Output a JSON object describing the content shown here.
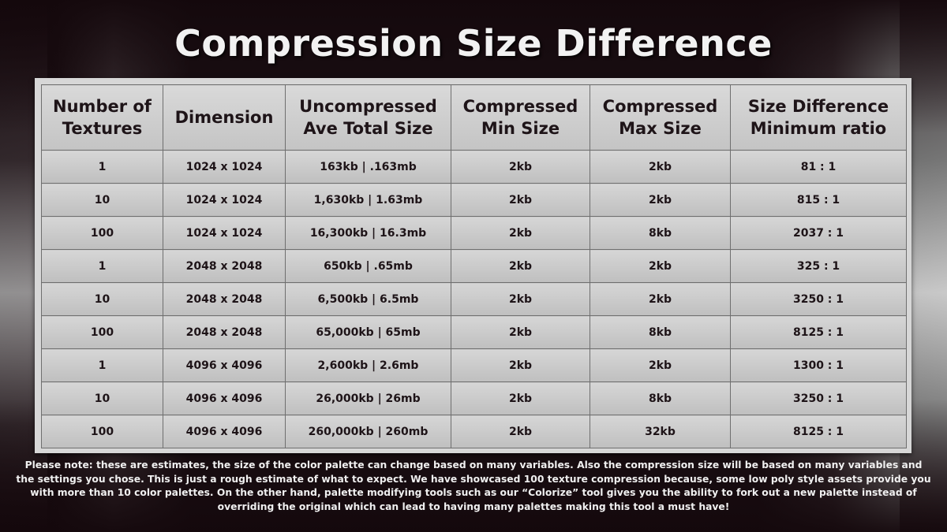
{
  "title": "Compression Size Difference",
  "table": {
    "headers": [
      "Number of Textures",
      "Dimension",
      "Uncompressed Ave Total Size",
      "Compressed Min Size",
      "Compressed Max Size",
      "Size Difference Minimum ratio"
    ],
    "rows": [
      [
        "1",
        "1024 x 1024",
        "163kb | .163mb",
        "2kb",
        "2kb",
        "81 : 1"
      ],
      [
        "10",
        "1024 x 1024",
        "1,630kb | 1.63mb",
        "2kb",
        "2kb",
        "815 : 1"
      ],
      [
        "100",
        "1024 x 1024",
        "16,300kb | 16.3mb",
        "2kb",
        "8kb",
        "2037 : 1"
      ],
      [
        "1",
        "2048 x 2048",
        "650kb | .65mb",
        "2kb",
        "2kb",
        "325 : 1"
      ],
      [
        "10",
        "2048 x 2048",
        "6,500kb | 6.5mb",
        "2kb",
        "2kb",
        "3250 : 1"
      ],
      [
        "100",
        "2048 x 2048",
        "65,000kb | 65mb",
        "2kb",
        "8kb",
        "8125 : 1"
      ],
      [
        "1",
        "4096 x 4096",
        "2,600kb | 2.6mb",
        "2kb",
        "2kb",
        "1300 : 1"
      ],
      [
        "10",
        "4096 x 4096",
        "26,000kb | 26mb",
        "2kb",
        "8kb",
        "3250 : 1"
      ],
      [
        "100",
        "4096 x 4096",
        "260,000kb | 260mb",
        "2kb",
        "32kb",
        "8125 : 1"
      ]
    ]
  },
  "note": "Please note: these are estimates, the size of the color palette can change based on many variables. Also the compression size will be based on many variables and the settings you chose. This is just a rough estimate of what to expect. We have showcased 100 texture compression because, some low poly style assets provide you with more than 10 color palettes. On the other hand, palette modifying tools such as our “Colorize” tool gives you the ability to fork out a new palette instead of overriding the original which can lead to having many palettes making this tool a must have!"
}
